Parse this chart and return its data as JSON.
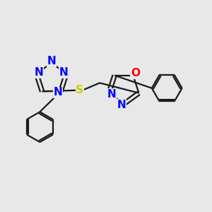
{
  "bg_color": "#e8e8e8",
  "bond_color": "#1a1a1a",
  "N_color": "#0000ff",
  "O_color": "#ff0000",
  "S_color": "#cccc00",
  "bond_width": 1.6,
  "font_size": 11,
  "fig_size": [
    3.0,
    3.0
  ],
  "dpi": 100,
  "xlim": [
    0,
    10
  ],
  "ylim": [
    0,
    10
  ]
}
